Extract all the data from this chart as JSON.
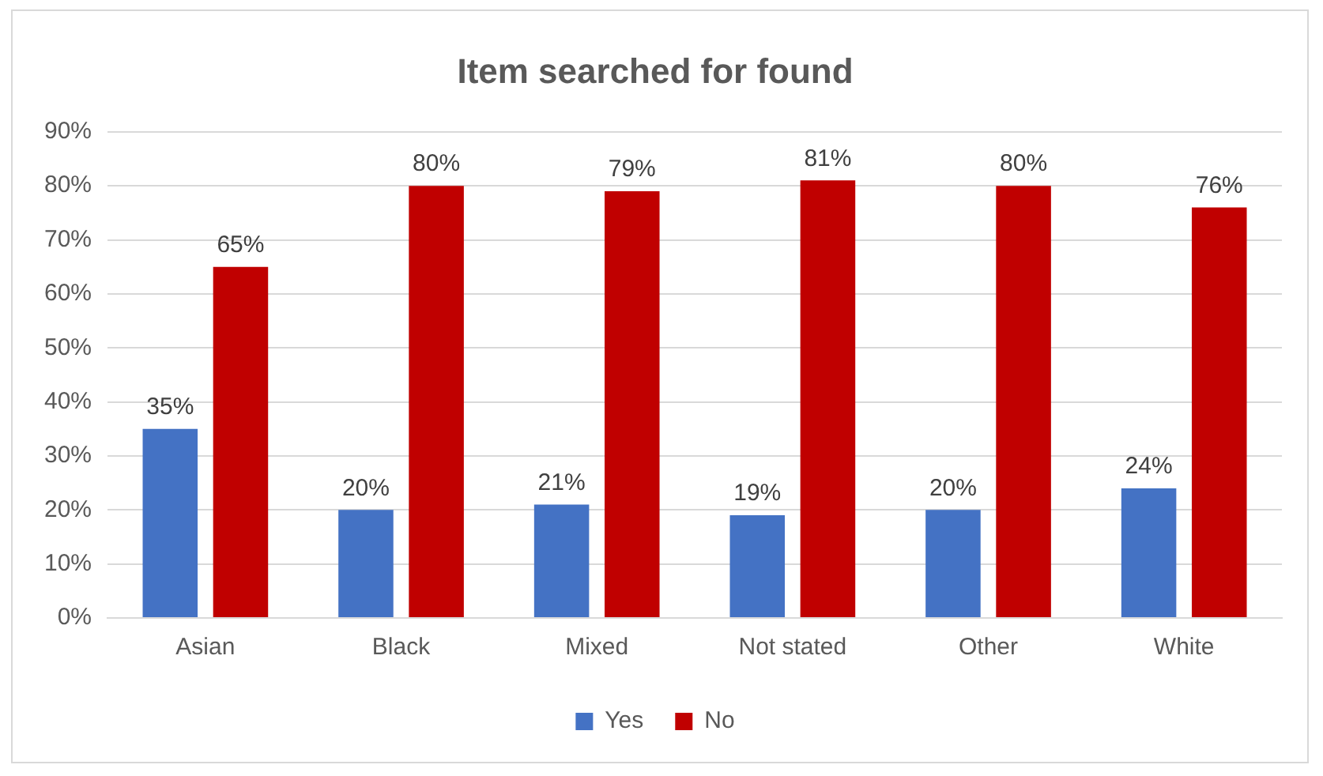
{
  "chart_data": {
    "type": "bar",
    "title": "Item searched for found",
    "categories": [
      "Asian",
      "Black",
      "Mixed",
      "Not stated",
      "Other",
      "White"
    ],
    "series": [
      {
        "name": "Yes",
        "color": "#4472c4",
        "values": [
          35,
          20,
          21,
          19,
          20,
          24
        ],
        "value_labels": [
          "35%",
          "20%",
          "21%",
          "19%",
          "20%",
          "24%"
        ]
      },
      {
        "name": "No",
        "color": "#c00000",
        "values": [
          65,
          80,
          79,
          81,
          80,
          76
        ],
        "value_labels": [
          "65%",
          "80%",
          "79%",
          "81%",
          "80%",
          "76%"
        ]
      }
    ],
    "ylim": [
      0,
      90
    ],
    "yticks": [
      {
        "value": 0,
        "label": "0%"
      },
      {
        "value": 10,
        "label": "10%"
      },
      {
        "value": 20,
        "label": "20%"
      },
      {
        "value": 30,
        "label": "30%"
      },
      {
        "value": 40,
        "label": "40%"
      },
      {
        "value": 50,
        "label": "50%"
      },
      {
        "value": 60,
        "label": "60%"
      },
      {
        "value": 70,
        "label": "70%"
      },
      {
        "value": 80,
        "label": "80%"
      },
      {
        "value": 90,
        "label": "90%"
      }
    ],
    "grid": "y",
    "legend": "bottom"
  }
}
